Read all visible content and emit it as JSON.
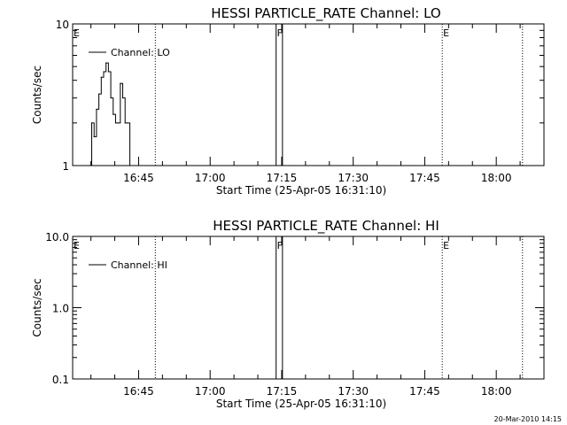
{
  "chart_data": [
    {
      "type": "line",
      "title": "HESSI PARTICLE_RATE Channel: LO",
      "ylabel": "Counts/sec",
      "xlabel": "Start Time (25-Apr-05 16:31:10)",
      "yscale": "log",
      "ylim": [
        1,
        10
      ],
      "yticks": [
        "1",
        "10"
      ],
      "xlim": [
        "16:31:10",
        "18:10:00"
      ],
      "xticks": [
        "16:45",
        "17:00",
        "17:15",
        "17:30",
        "17:45",
        "18:00"
      ],
      "legend": "Channel: LO",
      "legend_placement": "top-left",
      "markers": [
        {
          "label": "E",
          "time": "16:31:10",
          "style": "dotted"
        },
        {
          "label": "",
          "time": "16:48:30",
          "style": "dotted"
        },
        {
          "label": "F",
          "time": "17:13:50",
          "style": "solid"
        },
        {
          "label": "",
          "time": "17:15:10",
          "style": "solid"
        },
        {
          "label": "E",
          "time": "17:48:40",
          "style": "dotted"
        },
        {
          "label": "",
          "time": "18:05:30",
          "style": "dotted"
        }
      ],
      "series": [
        {
          "name": "Channel: LO",
          "x": [
            "16:34:40",
            "16:35:10",
            "16:35:40",
            "16:36:10",
            "16:36:40",
            "16:37:10",
            "16:37:40",
            "16:38:10",
            "16:38:40",
            "16:39:10",
            "16:39:40",
            "16:40:10",
            "16:40:40",
            "16:41:10",
            "16:41:40",
            "16:42:10",
            "16:42:40",
            "16:43:10"
          ],
          "y": [
            1,
            2,
            1.6,
            2.5,
            3.2,
            4.2,
            4.6,
            5.3,
            4.6,
            3.0,
            2.3,
            2.0,
            2.0,
            3.8,
            3.0,
            2.0,
            2.0,
            1
          ]
        }
      ]
    },
    {
      "type": "line",
      "title": "HESSI PARTICLE_RATE Channel: HI",
      "ylabel": "Counts/sec",
      "xlabel": "Start Time (25-Apr-05 16:31:10)",
      "yscale": "log",
      "ylim": [
        0.1,
        10
      ],
      "yticks": [
        "0.1",
        "1.0",
        "10.0"
      ],
      "xlim": [
        "16:31:10",
        "18:10:00"
      ],
      "xticks": [
        "16:45",
        "17:00",
        "17:15",
        "17:30",
        "17:45",
        "18:00"
      ],
      "legend": "Channel: HI",
      "legend_placement": "top-left",
      "markers": [
        {
          "label": "E",
          "time": "16:31:10",
          "style": "dotted"
        },
        {
          "label": "",
          "time": "16:48:30",
          "style": "dotted"
        },
        {
          "label": "F",
          "time": "17:13:50",
          "style": "solid"
        },
        {
          "label": "",
          "time": "17:15:10",
          "style": "solid"
        },
        {
          "label": "E",
          "time": "17:48:40",
          "style": "dotted"
        },
        {
          "label": "",
          "time": "18:05:30",
          "style": "dotted"
        }
      ],
      "series": [
        {
          "name": "Channel: HI",
          "x": [],
          "y": []
        }
      ]
    }
  ],
  "footer": "20-Mar-2010 14:15"
}
